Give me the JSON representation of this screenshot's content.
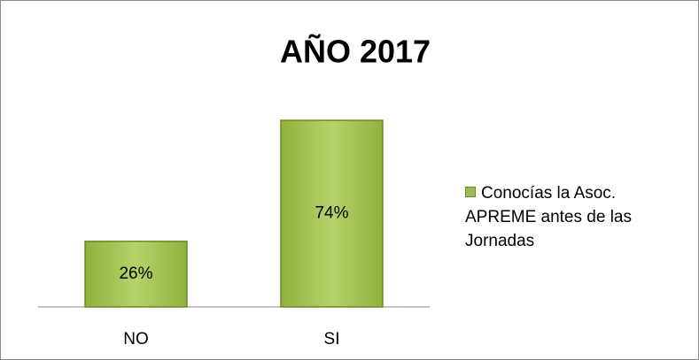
{
  "chart_data": {
    "type": "bar",
    "title": "AÑO 2017",
    "categories": [
      "NO",
      "SI"
    ],
    "series": [
      {
        "name": "Conocías la Asoc. APREME antes de las Jornadas",
        "color": "#9bbb59",
        "values": [
          26,
          74
        ],
        "value_labels": [
          "26%",
          "74%"
        ]
      }
    ],
    "legend": "right"
  }
}
